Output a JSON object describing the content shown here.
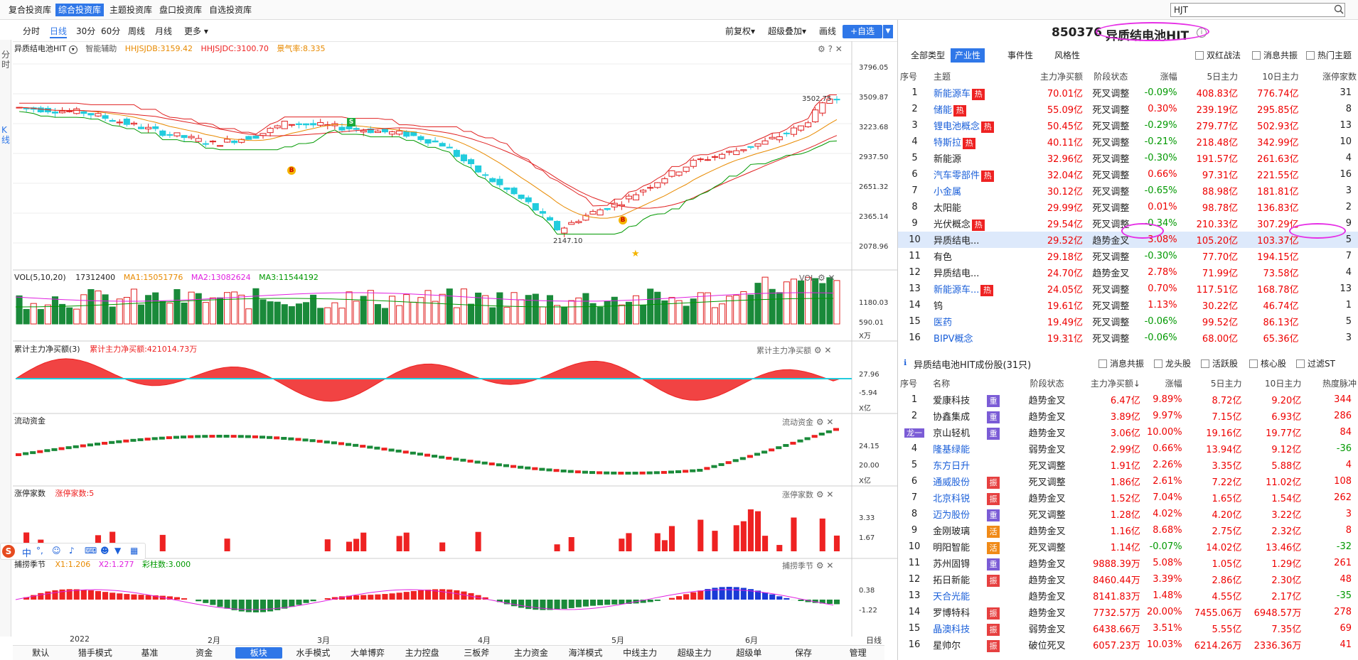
{
  "topnav": {
    "tabs": [
      "复合投资库",
      "综合投资库",
      "主题投资库",
      "盘口投资库",
      "自选投资库"
    ],
    "active_index": 1
  },
  "search": {
    "value": "HJT"
  },
  "toolbar": {
    "periods": [
      "分时",
      "日线",
      "30分",
      "60分",
      "周线",
      "月线",
      "更多"
    ],
    "active_period": "日线",
    "right": [
      "前复权",
      "超级叠加",
      "画线"
    ],
    "add_label": "+自选"
  },
  "leftstrip": {
    "top": "分时",
    "bottom": "K线"
  },
  "kline": {
    "title": "异质结电池HIT",
    "assist": "智能辅助",
    "hhjsjdb": "HHJSJDB:3159.42",
    "hhjsjdc": "HHJSJDC:3100.70",
    "prosperity": "景气率:8.335",
    "y_ticks": [
      "3796.05",
      "3509.87",
      "3223.68",
      "2937.50",
      "2651.32",
      "2365.14",
      "2078.96"
    ],
    "high_label": "3502.75",
    "low_label": "2147.10",
    "b_marker": "B",
    "s_marker": "S"
  },
  "vol": {
    "title": "VOL(5,10,20)",
    "value": "17312400",
    "ma1": "MA1:15051776",
    "ma2": "MA2:13082624",
    "ma3": "MA3:11544192",
    "right_name": "VOL",
    "y_ticks": [
      "1180.03",
      "590.01"
    ],
    "unit": "X万"
  },
  "cum": {
    "title": "累计主力净买额(3)",
    "value": "累计主力净买额:421014.73万",
    "right_name": "累计主力净买额",
    "y_ticks": [
      "27.96",
      "-5.94"
    ],
    "unit": "X亿"
  },
  "flow": {
    "title": "流动资金",
    "right_name": "流动资金",
    "y_ticks": [
      "24.15",
      "20.00"
    ],
    "unit": "X亿"
  },
  "limit": {
    "title": "涨停家数",
    "value": "涨停家数:5",
    "right_name": "涨停家数",
    "y_ticks": [
      "3.33",
      "1.67"
    ]
  },
  "season": {
    "title": "捕捞季节",
    "x1": "X1:1.206",
    "x2": "X2:1.277",
    "bar": "彩柱数:3.000",
    "right_name": "捕捞季节",
    "y_ticks": [
      "0.38",
      "-1.22"
    ]
  },
  "dates": [
    "2022",
    "2月",
    "3月",
    "4月",
    "5月",
    "6月"
  ],
  "date_unit": "日线",
  "bottom_tabs": [
    "默认",
    "猎手模式",
    "基准",
    "资金",
    "板块",
    "水手模式",
    "大单博弈",
    "主力控盘",
    "三板斧",
    "主力资金",
    "海洋模式",
    "中线主力",
    "超级主力",
    "超级单",
    "保存",
    "管理"
  ],
  "bottom_active": "板块",
  "stock": {
    "code": "850376",
    "name": "异质结电池HIT"
  },
  "theme_filter": {
    "tabs": [
      "全部类型",
      "产业性",
      "事件性",
      "风格性"
    ],
    "active": "产业性",
    "checks": [
      "双红战法",
      "消息共振",
      "热门主题"
    ]
  },
  "theme_headers": [
    "序号",
    "主题",
    "主力净买额",
    "阶段状态",
    "涨幅",
    "5日主力",
    "10日主力",
    "涨停家数"
  ],
  "themes": [
    {
      "n": "1",
      "name": "新能源车",
      "hot": true,
      "net": "70.01亿",
      "stage": "死叉调整",
      "chg": "-0.09%",
      "d5": "408.83亿",
      "d10": "776.74亿",
      "lim": "31"
    },
    {
      "n": "2",
      "name": "储能",
      "hot": true,
      "net": "55.09亿",
      "stage": "死叉调整",
      "chg": "0.30%",
      "d5": "239.19亿",
      "d10": "295.85亿",
      "lim": "8"
    },
    {
      "n": "3",
      "name": "锂电池概念",
      "hot": true,
      "net": "50.45亿",
      "stage": "死叉调整",
      "chg": "-0.29%",
      "d5": "279.77亿",
      "d10": "502.93亿",
      "lim": "13"
    },
    {
      "n": "4",
      "name": "特斯拉",
      "hot": true,
      "net": "40.11亿",
      "stage": "死叉调整",
      "chg": "-0.21%",
      "d5": "218.48亿",
      "d10": "342.99亿",
      "lim": "10"
    },
    {
      "n": "5",
      "name": "新能源",
      "hot": false,
      "net": "32.96亿",
      "stage": "死叉调整",
      "chg": "-0.30%",
      "d5": "191.57亿",
      "d10": "261.63亿",
      "lim": "4"
    },
    {
      "n": "6",
      "name": "汽车零部件",
      "hot": true,
      "net": "32.04亿",
      "stage": "死叉调整",
      "chg": "0.66%",
      "d5": "97.31亿",
      "d10": "221.55亿",
      "lim": "16"
    },
    {
      "n": "7",
      "name": "小金属",
      "hot": false,
      "net": "30.12亿",
      "stage": "死叉调整",
      "chg": "-0.65%",
      "d5": "88.98亿",
      "d10": "181.81亿",
      "lim": "3"
    },
    {
      "n": "8",
      "name": "太阳能",
      "hot": false,
      "net": "29.99亿",
      "stage": "死叉调整",
      "chg": "0.01%",
      "d5": "98.78亿",
      "d10": "136.83亿",
      "lim": "2"
    },
    {
      "n": "9",
      "name": "光伏概念",
      "hot": true,
      "net": "29.54亿",
      "stage": "死叉调整",
      "chg": "-0.34%",
      "d5": "210.33亿",
      "d10": "307.29亿",
      "lim": "9"
    },
    {
      "n": "10",
      "name": "异质结电...",
      "hot": false,
      "net": "29.52亿",
      "stage": "趋势金叉",
      "chg": "3.08%",
      "d5": "105.20亿",
      "d10": "103.37亿",
      "lim": "5"
    },
    {
      "n": "11",
      "name": "有色",
      "hot": false,
      "net": "29.18亿",
      "stage": "死叉调整",
      "chg": "-0.30%",
      "d5": "77.70亿",
      "d10": "194.15亿",
      "lim": "7"
    },
    {
      "n": "12",
      "name": "异质结电...",
      "hot": false,
      "net": "24.70亿",
      "stage": "趋势金叉",
      "chg": "2.78%",
      "d5": "71.99亿",
      "d10": "73.58亿",
      "lim": "4"
    },
    {
      "n": "13",
      "name": "新能源车...",
      "hot": true,
      "net": "24.05亿",
      "stage": "死叉调整",
      "chg": "0.70%",
      "d5": "117.51亿",
      "d10": "168.78亿",
      "lim": "13"
    },
    {
      "n": "14",
      "name": "钨",
      "hot": false,
      "net": "19.61亿",
      "stage": "死叉调整",
      "chg": "1.13%",
      "d5": "30.22亿",
      "d10": "46.74亿",
      "lim": "1"
    },
    {
      "n": "15",
      "name": "医药",
      "hot": false,
      "net": "19.49亿",
      "stage": "死叉调整",
      "chg": "-0.06%",
      "d5": "99.52亿",
      "d10": "86.13亿",
      "lim": "5"
    },
    {
      "n": "16",
      "name": "BIPV概念",
      "hot": false,
      "net": "19.31亿",
      "stage": "死叉调整",
      "chg": "-0.06%",
      "d5": "68.00亿",
      "d10": "65.36亿",
      "lim": "3"
    }
  ],
  "members_header": {
    "title": "异质结电池HIT成份股(31只)",
    "checks": [
      "消息共振",
      "龙头股",
      "活跃股",
      "核心股",
      "过滤ST"
    ]
  },
  "member_headers": [
    "序号",
    "名称",
    "阶段状态",
    "主力净买额↓",
    "涨幅",
    "5日主力",
    "10日主力",
    "热度脉冲"
  ],
  "members": [
    {
      "n": "1",
      "name": "爱康科技",
      "tag": "重",
      "stage": "趋势金叉",
      "net": "6.47亿",
      "chg": "9.89%",
      "d5": "8.72亿",
      "d10": "9.20亿",
      "heat": "344"
    },
    {
      "n": "2",
      "name": "协鑫集成",
      "tag": "重",
      "stage": "趋势金叉",
      "net": "3.89亿",
      "chg": "9.97%",
      "d5": "7.15亿",
      "d10": "6.93亿",
      "heat": "286"
    },
    {
      "n": "龙一",
      "name": "京山轻机",
      "tag": "重",
      "stage": "趋势金叉",
      "net": "3.06亿",
      "chg": "10.00%",
      "d5": "19.16亿",
      "d10": "19.77亿",
      "heat": "84"
    },
    {
      "n": "4",
      "name": "隆基绿能",
      "tag": "",
      "stage": "弱势金叉",
      "net": "2.99亿",
      "chg": "0.66%",
      "d5": "13.94亿",
      "d10": "9.12亿",
      "heat": "-36"
    },
    {
      "n": "5",
      "name": "东方日升",
      "tag": "",
      "stage": "死叉调整",
      "net": "1.91亿",
      "chg": "2.26%",
      "d5": "3.35亿",
      "d10": "5.88亿",
      "heat": "4"
    },
    {
      "n": "6",
      "name": "通威股份",
      "tag": "振",
      "stage": "死叉调整",
      "net": "1.86亿",
      "chg": "2.61%",
      "d5": "7.22亿",
      "d10": "11.02亿",
      "heat": "108"
    },
    {
      "n": "7",
      "name": "北京科锐",
      "tag": "振",
      "stage": "趋势金叉",
      "net": "1.52亿",
      "chg": "7.04%",
      "d5": "1.65亿",
      "d10": "1.54亿",
      "heat": "262"
    },
    {
      "n": "8",
      "name": "迈为股份",
      "tag": "重",
      "stage": "死叉调整",
      "net": "1.28亿",
      "chg": "4.02%",
      "d5": "4.20亿",
      "d10": "3.22亿",
      "heat": "3"
    },
    {
      "n": "9",
      "name": "金刚玻璃",
      "tag": "活",
      "stage": "趋势金叉",
      "net": "1.16亿",
      "chg": "8.68%",
      "d5": "2.75亿",
      "d10": "2.32亿",
      "heat": "8"
    },
    {
      "n": "10",
      "name": "明阳智能",
      "tag": "活",
      "stage": "死叉调整",
      "net": "1.14亿",
      "chg": "-0.07%",
      "d5": "14.02亿",
      "d10": "13.46亿",
      "heat": "-32"
    },
    {
      "n": "11",
      "name": "苏州固锝",
      "tag": "重",
      "stage": "趋势金叉",
      "net": "9888.39万",
      "chg": "5.08%",
      "d5": "1.05亿",
      "d10": "1.29亿",
      "heat": "261"
    },
    {
      "n": "12",
      "name": "拓日新能",
      "tag": "振",
      "stage": "趋势金叉",
      "net": "8460.44万",
      "chg": "3.39%",
      "d5": "2.86亿",
      "d10": "2.30亿",
      "heat": "48"
    },
    {
      "n": "13",
      "name": "天合光能",
      "tag": "",
      "stage": "趋势金叉",
      "net": "8141.83万",
      "chg": "1.48%",
      "d5": "4.55亿",
      "d10": "2.17亿",
      "heat": "-35"
    },
    {
      "n": "14",
      "name": "罗博特科",
      "tag": "振",
      "stage": "趋势金叉",
      "net": "7732.57万",
      "chg": "20.00%",
      "d5": "7455.06万",
      "d10": "6948.57万",
      "heat": "278"
    },
    {
      "n": "15",
      "name": "晶澳科技",
      "tag": "振",
      "stage": "弱势金叉",
      "net": "6438.66万",
      "chg": "3.51%",
      "d5": "5.55亿",
      "d10": "7.35亿",
      "heat": "69"
    },
    {
      "n": "16",
      "name": "星帅尔",
      "tag": "振",
      "stage": "破位死叉",
      "net": "6057.23万",
      "chg": "10.03%",
      "d5": "6214.26万",
      "d10": "2336.36万",
      "heat": "41"
    }
  ],
  "ime": {
    "items": [
      "中",
      "°,"
    ]
  },
  "colors": {
    "accent": "#2f77e8",
    "up": "#e00000",
    "down": "#009900",
    "kline_up": "#e02020",
    "kline_down": "#22ccdd",
    "highlight": "#e62ee6"
  }
}
